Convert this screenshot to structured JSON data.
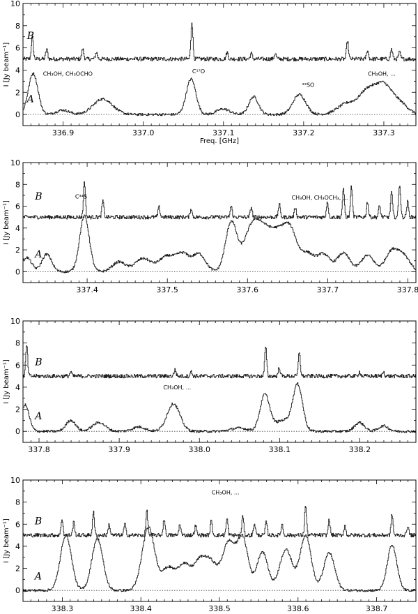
{
  "chart_data": [
    {
      "type": "line",
      "xlim": [
        336.85,
        337.34
      ],
      "ylim": [
        -1,
        10
      ],
      "xticks": [
        336.9,
        337.0,
        337.1,
        337.2,
        337.3
      ],
      "xtick_labels": [
        "336.9",
        "337.0",
        "337.1",
        "337.2",
        "337.3"
      ],
      "yticks": [
        0,
        2,
        4,
        6,
        8,
        10
      ],
      "ytick_labels": [
        "0",
        "2",
        "4",
        "6",
        "8",
        "10"
      ],
      "xlabel": "Freq. [GHz]",
      "ylabel": "I [Jy beam⁻¹]",
      "annotations": [
        {
          "text": "CH₃OH, CH₃OCHO",
          "x": 336.875,
          "y": 3.5
        },
        {
          "text": "C¹⁷O",
          "x": 337.061,
          "y": 3.7
        },
        {
          "text": "³³SO",
          "x": 337.198,
          "y": 2.5
        },
        {
          "text": "CH₃OH, ...",
          "x": 337.28,
          "y": 3.5
        }
      ],
      "series": [
        {
          "name": "B",
          "label_x": 336.855,
          "label_y": 6.8,
          "baseline": 5.0,
          "offset": 5.0,
          "lines": [
            [
              336.862,
              2.0
            ],
            [
              336.88,
              0.9
            ],
            [
              336.925,
              0.9
            ],
            [
              336.942,
              0.6
            ],
            [
              337.061,
              3.4
            ],
            [
              337.105,
              0.6
            ],
            [
              337.135,
              0.5
            ],
            [
              337.165,
              0.5
            ],
            [
              337.255,
              1.6
            ],
            [
              337.28,
              0.8
            ],
            [
              337.31,
              0.9
            ],
            [
              337.32,
              0.6
            ]
          ]
        },
        {
          "name": "A",
          "label_x": 336.855,
          "label_y": 1.1,
          "baseline": 0.0,
          "offset": 0.0,
          "lines": [
            [
              336.863,
              3.7,
              0.006
            ],
            [
              336.9,
              0.4,
              0.008
            ],
            [
              336.95,
              1.4,
              0.012
            ],
            [
              337.06,
              3.2,
              0.006
            ],
            [
              337.1,
              0.5,
              0.008
            ],
            [
              337.138,
              1.6,
              0.006
            ],
            [
              337.195,
              1.8,
              0.008
            ],
            [
              337.255,
              1.0,
              0.012
            ],
            [
              337.28,
              2.0,
              0.01
            ],
            [
              337.3,
              2.5,
              0.01
            ],
            [
              337.32,
              1.0,
              0.01
            ]
          ]
        }
      ]
    },
    {
      "type": "line",
      "xlim": [
        337.32,
        337.81
      ],
      "ylim": [
        -1,
        10
      ],
      "xticks": [
        337.4,
        337.5,
        337.6,
        337.7,
        337.8
      ],
      "xtick_labels": [
        "337.4",
        "337.5",
        "337.6",
        "337.7",
        "337.8"
      ],
      "yticks": [
        0,
        2,
        4,
        6,
        8,
        10
      ],
      "ytick_labels": [
        "0",
        "2",
        "4",
        "6",
        "8",
        "10"
      ],
      "xlabel": "",
      "ylabel": "I [Jy beam⁻¹]",
      "annotations": [
        {
          "text": "C³⁴S",
          "x": 337.385,
          "y": 6.7
        },
        {
          "text": "CH₃OH, CH₃OCH₃, ...",
          "x": 337.655,
          "y": 6.6
        }
      ],
      "series": [
        {
          "name": "B",
          "label_x": 337.335,
          "label_y": 6.6,
          "baseline": 5.0,
          "offset": 5.0,
          "lines": [
            [
              337.397,
              3.3
            ],
            [
              337.42,
              1.5
            ],
            [
              337.49,
              0.9
            ],
            [
              337.53,
              0.8
            ],
            [
              337.58,
              1.0
            ],
            [
              337.605,
              0.9
            ],
            [
              337.64,
              1.2
            ],
            [
              337.66,
              0.9
            ],
            [
              337.7,
              1.4
            ],
            [
              337.72,
              2.5
            ],
            [
              337.73,
              2.8
            ],
            [
              337.75,
              1.4
            ],
            [
              337.765,
              1.0
            ],
            [
              337.78,
              2.3
            ],
            [
              337.79,
              3.0
            ],
            [
              337.8,
              1.4
            ]
          ]
        },
        {
          "name": "A",
          "label_x": 337.335,
          "label_y": 1.3,
          "baseline": 0.0,
          "offset": 0.0,
          "lines": [
            [
              337.325,
              1.3,
              0.006
            ],
            [
              337.35,
              1.6,
              0.006
            ],
            [
              337.397,
              5.1,
              0.006
            ],
            [
              337.44,
              0.9,
              0.008
            ],
            [
              337.47,
              1.2,
              0.01
            ],
            [
              337.5,
              1.4,
              0.01
            ],
            [
              337.52,
              1.5,
              0.008
            ],
            [
              337.54,
              1.6,
              0.008
            ],
            [
              337.58,
              4.5,
              0.007
            ],
            [
              337.605,
              3.6,
              0.01
            ],
            [
              337.62,
              2.5,
              0.01
            ],
            [
              337.64,
              3.4,
              0.012
            ],
            [
              337.655,
              2.5,
              0.008
            ],
            [
              337.675,
              1.6,
              0.008
            ],
            [
              337.695,
              1.6,
              0.008
            ],
            [
              337.72,
              1.7,
              0.008
            ],
            [
              337.75,
              1.5,
              0.008
            ],
            [
              337.78,
              1.8,
              0.008
            ],
            [
              337.795,
              1.4,
              0.008
            ]
          ]
        }
      ]
    },
    {
      "type": "line",
      "xlim": [
        337.78,
        338.27
      ],
      "ylim": [
        -1,
        10
      ],
      "xticks": [
        337.8,
        337.9,
        338.0,
        338.1,
        338.2
      ],
      "xtick_labels": [
        "337.8",
        "337.9",
        "338.0",
        "338.1",
        "338.2"
      ],
      "yticks": [
        0,
        2,
        4,
        6,
        8,
        10
      ],
      "ytick_labels": [
        "0",
        "2",
        "4",
        "6",
        "8",
        "10"
      ],
      "xlabel": "",
      "ylabel": "I [Jy beam⁻¹]",
      "annotations": [
        {
          "text": "CH₃OH, ...",
          "x": 337.955,
          "y": 3.8
        }
      ],
      "series": [
        {
          "name": "B",
          "label_x": 337.795,
          "label_y": 6.0,
          "baseline": 5.0,
          "offset": 5.0,
          "lines": [
            [
              337.785,
              2.8
            ],
            [
              337.84,
              0.4
            ],
            [
              337.97,
              0.6
            ],
            [
              337.99,
              0.4
            ],
            [
              338.083,
              2.6
            ],
            [
              338.1,
              0.8
            ],
            [
              338.125,
              2.2
            ],
            [
              338.2,
              0.4
            ],
            [
              338.23,
              0.4
            ]
          ]
        },
        {
          "name": "A",
          "label_x": 337.795,
          "label_y": 1.1,
          "baseline": 0.0,
          "offset": 0.0,
          "lines": [
            [
              337.783,
              2.4,
              0.005
            ],
            [
              337.84,
              1.0,
              0.006
            ],
            [
              337.875,
              0.8,
              0.008
            ],
            [
              337.925,
              0.4,
              0.008
            ],
            [
              337.968,
              2.5,
              0.008
            ],
            [
              338.05,
              0.3,
              0.01
            ],
            [
              338.082,
              3.3,
              0.006
            ],
            [
              338.105,
              1.0,
              0.01
            ],
            [
              338.123,
              4.1,
              0.006
            ],
            [
              338.2,
              0.8,
              0.006
            ],
            [
              338.23,
              0.5,
              0.006
            ]
          ]
        }
      ]
    },
    {
      "type": "line",
      "xlim": [
        338.25,
        338.75
      ],
      "ylim": [
        -1,
        10
      ],
      "xticks": [
        338.3,
        338.4,
        338.5,
        338.6,
        338.7
      ],
      "xtick_labels": [
        "338.3",
        "338.4",
        "338.5",
        "338.6",
        "338.7"
      ],
      "yticks": [
        0,
        2,
        4,
        6,
        8,
        10
      ],
      "ytick_labels": [
        "0",
        "2",
        "4",
        "6",
        "8",
        "10"
      ],
      "xlabel": "",
      "ylabel": "I [Jy beam⁻¹]",
      "annotations": [
        {
          "text": "CH₃OH, ...",
          "x": 338.49,
          "y": 8.7
        }
      ],
      "series": [
        {
          "name": "B",
          "label_x": 338.265,
          "label_y": 6.0,
          "baseline": 5.0,
          "offset": 5.0,
          "lines": [
            [
              338.3,
              1.5
            ],
            [
              338.315,
              1.2
            ],
            [
              338.34,
              2.1
            ],
            [
              338.36,
              1.0
            ],
            [
              338.38,
              1.0
            ],
            [
              338.408,
              2.2
            ],
            [
              338.43,
              1.5
            ],
            [
              338.45,
              1.0
            ],
            [
              338.47,
              0.9
            ],
            [
              338.49,
              1.3
            ],
            [
              338.51,
              1.5
            ],
            [
              338.53,
              1.7
            ],
            [
              338.545,
              1.1
            ],
            [
              338.56,
              1.2
            ],
            [
              338.58,
              1.0
            ],
            [
              338.61,
              2.7
            ],
            [
              338.64,
              1.4
            ],
            [
              338.66,
              0.9
            ],
            [
              338.72,
              1.9
            ],
            [
              338.74,
              0.9
            ]
          ]
        },
        {
          "name": "A",
          "label_x": 338.265,
          "label_y": 1.0,
          "baseline": 0.0,
          "offset": 0.0,
          "lines": [
            [
              338.305,
              5.0,
              0.007
            ],
            [
              338.345,
              4.7,
              0.007
            ],
            [
              338.41,
              5.7,
              0.008
            ],
            [
              338.435,
              2.0,
              0.008
            ],
            [
              338.455,
              2.3,
              0.008
            ],
            [
              338.475,
              2.5,
              0.008
            ],
            [
              338.49,
              2.3,
              0.008
            ],
            [
              338.512,
              4.3,
              0.008
            ],
            [
              338.53,
              4.6,
              0.007
            ],
            [
              338.555,
              3.5,
              0.007
            ],
            [
              338.585,
              3.7,
              0.008
            ],
            [
              338.61,
              5.0,
              0.007
            ],
            [
              338.64,
              3.4,
              0.007
            ],
            [
              338.72,
              4.1,
              0.006
            ]
          ]
        }
      ]
    }
  ]
}
